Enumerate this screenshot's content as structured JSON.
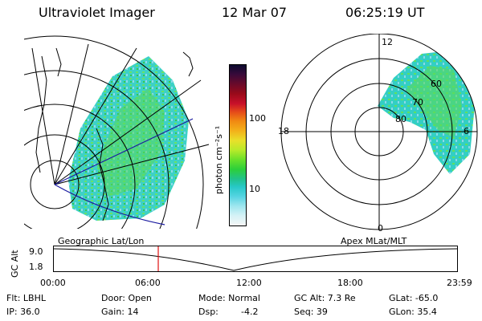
{
  "header": {
    "title": "Ultraviolet Imager",
    "date": "12 Mar 07",
    "time": "06:25:19 UT"
  },
  "colorbar": {
    "unit_label": "photon cm⁻²s⁻¹",
    "ticks": [
      "100",
      "10"
    ],
    "colors": [
      "#0b0b2e",
      "#3a0a3a",
      "#6b0a2a",
      "#9a0a1a",
      "#c8102a",
      "#e4471a",
      "#f18a12",
      "#f3b11a",
      "#e9e02a",
      "#b8ea2a",
      "#6ae02a",
      "#2ccf3a",
      "#21c28a",
      "#27c8c8",
      "#56d4e2",
      "#9fe6ef",
      "#d6f2f6",
      "#f4f6f6"
    ]
  },
  "map_left": {
    "label": "Geographic Lat/Lon"
  },
  "map_right": {
    "label": "Apex MLat/MLT",
    "mlt_labels": [
      "12",
      "18",
      "6",
      "0"
    ],
    "mlat_labels": [
      "60",
      "70",
      "80"
    ]
  },
  "timeline": {
    "axis_title": "GC Alt",
    "y_ticks": [
      "9.0",
      "1.8"
    ],
    "x_ticks": [
      "00:00",
      "06:00",
      "12:00",
      "18:00",
      "23:59"
    ],
    "marker_time": "06:25"
  },
  "footer": {
    "filter": "Flt: LBHL",
    "ip": "IP: 36.0",
    "door": "Door: Open",
    "gain": "Gain: 14",
    "mode": "Mode: Normal",
    "dsp_label": "Dsp:",
    "dsp_value": "-4.2",
    "gc_alt": "GC Alt: 7.3 Re",
    "seq": "Seq: 39",
    "glat": "GLat: -65.0",
    "glon": "GLon: 35.4"
  }
}
